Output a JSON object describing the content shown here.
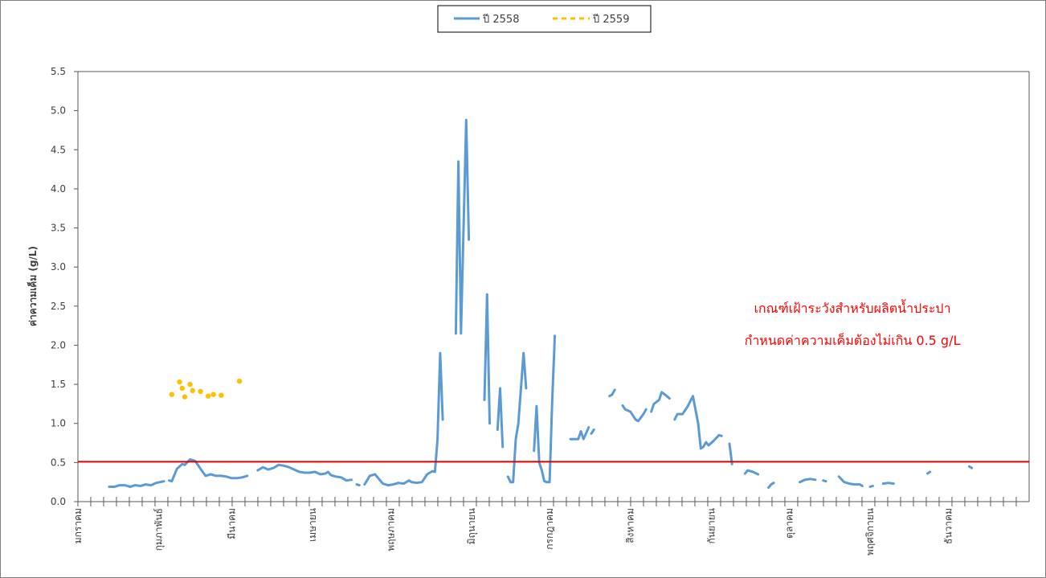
{
  "chart_data": {
    "type": "line",
    "title": "",
    "xlabel": "",
    "ylabel": "ค่าความเค็ม (g/L)",
    "ylim": [
      0,
      5.5
    ],
    "yticks": [
      "0.0",
      "0.5",
      "1.0",
      "1.5",
      "2.0",
      "2.5",
      "3.0",
      "3.5",
      "4.0",
      "4.5",
      "5.0",
      "5.5"
    ],
    "xlim": [
      0,
      365
    ],
    "x_unit": "day of year",
    "months": [
      {
        "label": "มกราคม",
        "day": 0
      },
      {
        "label": "กุมภาพันธ์",
        "day": 31
      },
      {
        "label": "มีนาคม",
        "day": 59
      },
      {
        "label": "เมษายน",
        "day": 90
      },
      {
        "label": "พฤษภาคม",
        "day": 120
      },
      {
        "label": "มิถุนายน",
        "day": 151
      },
      {
        "label": "กรกฎาคม",
        "day": 181
      },
      {
        "label": "สิงหาคม",
        "day": 212
      },
      {
        "label": "กันยายน",
        "day": 243
      },
      {
        "label": "ตุลาคม",
        "day": 273
      },
      {
        "label": "พฤศจิกายน",
        "day": 304
      },
      {
        "label": "ธันวาคม",
        "day": 334
      }
    ],
    "grid": false,
    "legend": "top-center",
    "threshold": {
      "value": 0.51,
      "color": "#e00000"
    },
    "annotation": [
      "เกณฑ์เฝ้าระวังสำหรับผลิตน้ำประปา",
      "กำหนดค่าความเค็มต้องไม่เกิน 0.5 g/L"
    ],
    "series": [
      {
        "name": "ปี 2558",
        "color": "#5b9bd5",
        "style": "solid",
        "segments": [
          [
            [
              12,
              0.19
            ],
            [
              14,
              0.19
            ],
            [
              16,
              0.21
            ],
            [
              18,
              0.21
            ],
            [
              20,
              0.19
            ],
            [
              22,
              0.21
            ],
            [
              24,
              0.2
            ],
            [
              26,
              0.22
            ],
            [
              28,
              0.21
            ],
            [
              30,
              0.24
            ],
            [
              33,
              0.26
            ]
          ],
          [
            [
              35,
              0.27
            ],
            [
              36,
              0.26
            ],
            [
              38,
              0.42
            ],
            [
              40,
              0.48
            ],
            [
              41,
              0.47
            ],
            [
              43,
              0.54
            ],
            [
              45,
              0.52
            ],
            [
              47,
              0.42
            ],
            [
              49,
              0.33
            ],
            [
              51,
              0.35
            ],
            [
              53,
              0.33
            ],
            [
              55,
              0.33
            ],
            [
              57,
              0.32
            ],
            [
              59,
              0.3
            ],
            [
              61,
              0.3
            ],
            [
              63,
              0.31
            ],
            [
              65,
              0.33
            ]
          ],
          [
            [
              69,
              0.4
            ],
            [
              71,
              0.44
            ],
            [
              73,
              0.41
            ],
            [
              75,
              0.43
            ],
            [
              77,
              0.47
            ],
            [
              79,
              0.46
            ],
            [
              81,
              0.44
            ],
            [
              83,
              0.41
            ],
            [
              85,
              0.38
            ],
            [
              87,
              0.37
            ],
            [
              89,
              0.37
            ],
            [
              91,
              0.38
            ],
            [
              93,
              0.35
            ],
            [
              95,
              0.36
            ],
            [
              96,
              0.38
            ],
            [
              97,
              0.34
            ],
            [
              99,
              0.32
            ],
            [
              101,
              0.31
            ],
            [
              103,
              0.27
            ],
            [
              105,
              0.28
            ]
          ],
          [
            [
              107,
              0.22
            ],
            [
              108,
              0.21
            ]
          ],
          [
            [
              110,
              0.22
            ],
            [
              112,
              0.33
            ],
            [
              114,
              0.35
            ],
            [
              117,
              0.23
            ],
            [
              119,
              0.21
            ],
            [
              121,
              0.22
            ],
            [
              123,
              0.24
            ],
            [
              125,
              0.23
            ],
            [
              127,
              0.27
            ],
            [
              128,
              0.25
            ],
            [
              130,
              0.24
            ],
            [
              132,
              0.25
            ],
            [
              134,
              0.35
            ],
            [
              136,
              0.39
            ],
            [
              137,
              0.38
            ],
            [
              138,
              0.8
            ],
            [
              139,
              1.9
            ],
            [
              140,
              1.05
            ]
          ],
          [
            [
              145,
              2.15
            ],
            [
              146,
              4.35
            ],
            [
              147,
              2.15
            ],
            [
              149,
              4.88
            ],
            [
              150,
              3.35
            ]
          ],
          [
            [
              156,
              1.3
            ],
            [
              157,
              2.65
            ],
            [
              158,
              1.0
            ]
          ],
          [
            [
              161,
              0.92
            ],
            [
              162,
              1.45
            ],
            [
              163,
              0.7
            ]
          ],
          [
            [
              165,
              0.32
            ],
            [
              166,
              0.25
            ],
            [
              167,
              0.25
            ],
            [
              168,
              0.8
            ],
            [
              169,
              1.0
            ],
            [
              171,
              1.9
            ],
            [
              172,
              1.45
            ]
          ],
          [
            [
              175,
              0.65
            ],
            [
              176,
              1.22
            ],
            [
              177,
              0.5
            ],
            [
              178,
              0.4
            ],
            [
              179,
              0.26
            ],
            [
              180,
              0.25
            ],
            [
              181,
              0.25
            ],
            [
              182,
              1.3
            ],
            [
              183,
              2.12
            ]
          ],
          [
            [
              189,
              0.8
            ],
            [
              190,
              0.8
            ],
            [
              192,
              0.8
            ],
            [
              193,
              0.9
            ],
            [
              194,
              0.8
            ],
            [
              196,
              0.95
            ]
          ],
          [
            [
              197,
              0.87
            ],
            [
              198,
              0.92
            ]
          ],
          [
            [
              204,
              1.35
            ],
            [
              205,
              1.37
            ],
            [
              206,
              1.43
            ]
          ],
          [
            [
              209,
              1.23
            ],
            [
              210,
              1.18
            ],
            [
              212,
              1.15
            ],
            [
              214,
              1.05
            ],
            [
              215,
              1.03
            ],
            [
              217,
              1.12
            ],
            [
              218,
              1.18
            ]
          ],
          [
            [
              220,
              1.15
            ],
            [
              221,
              1.25
            ],
            [
              223,
              1.3
            ],
            [
              224,
              1.4
            ],
            [
              226,
              1.35
            ],
            [
              227,
              1.32
            ]
          ],
          [
            [
              229,
              1.05
            ],
            [
              230,
              1.12
            ],
            [
              232,
              1.12
            ],
            [
              234,
              1.22
            ],
            [
              236,
              1.35
            ],
            [
              238,
              1.0
            ],
            [
              239,
              0.68
            ],
            [
              240,
              0.7
            ],
            [
              241,
              0.76
            ],
            [
              242,
              0.72
            ],
            [
              244,
              0.78
            ],
            [
              246,
              0.85
            ],
            [
              247,
              0.84
            ]
          ],
          [
            [
              250,
              0.74
            ],
            [
              251,
              0.48
            ]
          ],
          [
            [
              256,
              0.36
            ],
            [
              257,
              0.4
            ],
            [
              259,
              0.38
            ],
            [
              261,
              0.35
            ]
          ],
          [
            [
              265,
              0.18
            ],
            [
              266,
              0.22
            ],
            [
              267,
              0.24
            ]
          ],
          [
            [
              277,
              0.25
            ],
            [
              279,
              0.28
            ],
            [
              281,
              0.29
            ],
            [
              283,
              0.28
            ]
          ],
          [
            [
              286,
              0.27
            ],
            [
              287,
              0.26
            ]
          ],
          [
            [
              292,
              0.32
            ],
            [
              294,
              0.25
            ],
            [
              296,
              0.23
            ],
            [
              298,
              0.22
            ],
            [
              300,
              0.22
            ],
            [
              301,
              0.2
            ]
          ],
          [
            [
              304,
              0.19
            ],
            [
              305,
              0.2
            ]
          ],
          [
            [
              309,
              0.23
            ],
            [
              311,
              0.24
            ],
            [
              313,
              0.23
            ]
          ],
          [
            [
              326,
              0.36
            ],
            [
              327,
              0.38
            ]
          ],
          [
            [
              342,
              0.45
            ],
            [
              343,
              0.43
            ]
          ]
        ]
      },
      {
        "name": "ปี 2559",
        "color": "#ffc000",
        "style": "dashed",
        "points": [
          [
            36,
            1.37
          ],
          [
            39,
            1.53
          ],
          [
            40,
            1.45
          ],
          [
            41,
            1.34
          ],
          [
            43,
            1.5
          ],
          [
            44,
            1.42
          ],
          [
            47,
            1.41
          ],
          [
            50,
            1.35
          ],
          [
            52,
            1.37
          ],
          [
            55,
            1.36
          ],
          [
            62,
            1.54
          ]
        ]
      }
    ]
  }
}
